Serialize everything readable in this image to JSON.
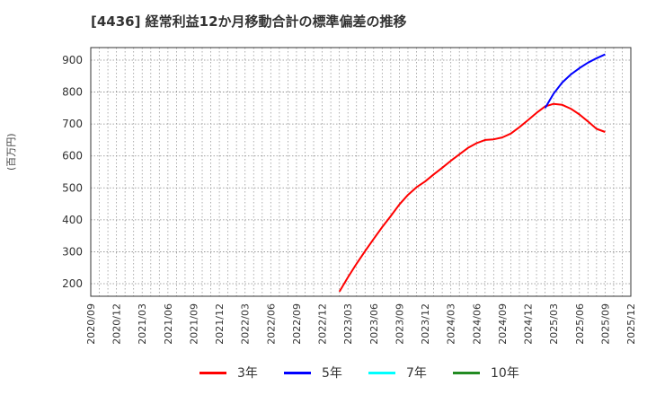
{
  "header": {
    "title": "[4436]  経常利益12か月移動合計の標準偏差の推移"
  },
  "axis": {
    "ylabel": "(百万円)"
  },
  "legend": [
    {
      "label": "3年",
      "color": "#ff0000"
    },
    {
      "label": "5年",
      "color": "#0000ff"
    },
    {
      "label": "7年",
      "color": "#00ffff"
    },
    {
      "label": "10年",
      "color": "#228b22"
    }
  ],
  "chart_data": {
    "type": "line",
    "title": "[4436]  経常利益12か月移動合計の標準偏差の推移",
    "xlabel": "",
    "ylabel": "(百万円)",
    "ylim": [
      160,
      940
    ],
    "yticks": [
      200,
      300,
      400,
      500,
      600,
      700,
      800,
      900
    ],
    "xticks": [
      "2020/09",
      "2020/12",
      "2021/03",
      "2021/06",
      "2021/09",
      "2021/12",
      "2022/03",
      "2022/06",
      "2022/09",
      "2022/12",
      "2023/03",
      "2023/06",
      "2023/09",
      "2023/12",
      "2024/03",
      "2024/06",
      "2024/09",
      "2024/12",
      "2025/03",
      "2025/06",
      "2025/09",
      "2025/12"
    ],
    "x_range": [
      "2020/09",
      "2025/12"
    ],
    "grid": true,
    "legend_position": "bottom",
    "series": [
      {
        "name": "3年",
        "color": "#ff0000",
        "x": [
          "2023/02",
          "2023/03",
          "2023/04",
          "2023/05",
          "2023/06",
          "2023/07",
          "2023/08",
          "2023/09",
          "2023/10",
          "2023/11",
          "2023/12",
          "2024/01",
          "2024/02",
          "2024/03",
          "2024/04",
          "2024/05",
          "2024/06",
          "2024/07",
          "2024/08",
          "2024/09",
          "2024/10",
          "2024/11",
          "2024/12",
          "2025/01",
          "2025/02",
          "2025/03",
          "2025/04",
          "2025/05",
          "2025/06",
          "2025/07",
          "2025/08",
          "2025/09"
        ],
        "values": [
          175,
          220,
          262,
          302,
          340,
          377,
          412,
          448,
          478,
          502,
          520,
          542,
          563,
          585,
          605,
          625,
          640,
          650,
          652,
          658,
          670,
          690,
          712,
          735,
          755,
          763,
          760,
          748,
          730,
          708,
          685,
          675
        ]
      },
      {
        "name": "5年",
        "color": "#0000ff",
        "x": [
          "2025/02",
          "2025/03",
          "2025/04",
          "2025/05",
          "2025/06",
          "2025/07",
          "2025/08",
          "2025/09"
        ],
        "values": [
          750,
          795,
          830,
          855,
          875,
          892,
          906,
          918
        ]
      },
      {
        "name": "7年",
        "color": "#00ffff",
        "x": [],
        "values": []
      },
      {
        "name": "10年",
        "color": "#228b22",
        "x": [],
        "values": []
      }
    ]
  }
}
